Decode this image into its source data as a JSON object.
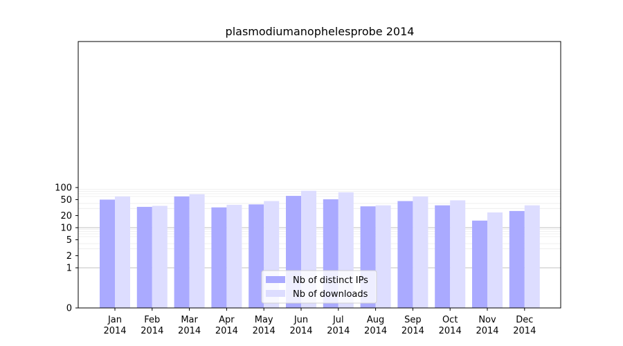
{
  "chart_data": {
    "type": "bar",
    "title": "plasmodiumanophelesprobe 2014",
    "xlabel": "",
    "ylabel": "",
    "y_scale": "symlog",
    "ylim": [
      0,
      100
    ],
    "y_ticks": [
      0,
      1,
      2,
      5,
      10,
      20,
      50,
      100
    ],
    "categories": [
      [
        "Jan",
        "2014"
      ],
      [
        "Feb",
        "2014"
      ],
      [
        "Mar",
        "2014"
      ],
      [
        "Apr",
        "2014"
      ],
      [
        "May",
        "2014"
      ],
      [
        "Jun",
        "2014"
      ],
      [
        "Jul",
        "2014"
      ],
      [
        "Aug",
        "2014"
      ],
      [
        "Sep",
        "2014"
      ],
      [
        "Oct",
        "2014"
      ],
      [
        "Nov",
        "2014"
      ],
      [
        "Dec",
        "2014"
      ]
    ],
    "series": [
      {
        "name": "Nb of distinct IPs",
        "color": "#aaaaff",
        "values": [
          50,
          33,
          60,
          32,
          38,
          62,
          51,
          34,
          46,
          36,
          15,
          26
        ]
      },
      {
        "name": "Nb of downloads",
        "color": "#ddddff",
        "values": [
          60,
          35,
          68,
          37,
          46,
          83,
          76,
          36,
          60,
          48,
          24,
          36
        ]
      }
    ],
    "grid": true,
    "legend_position": "bottom-center"
  }
}
